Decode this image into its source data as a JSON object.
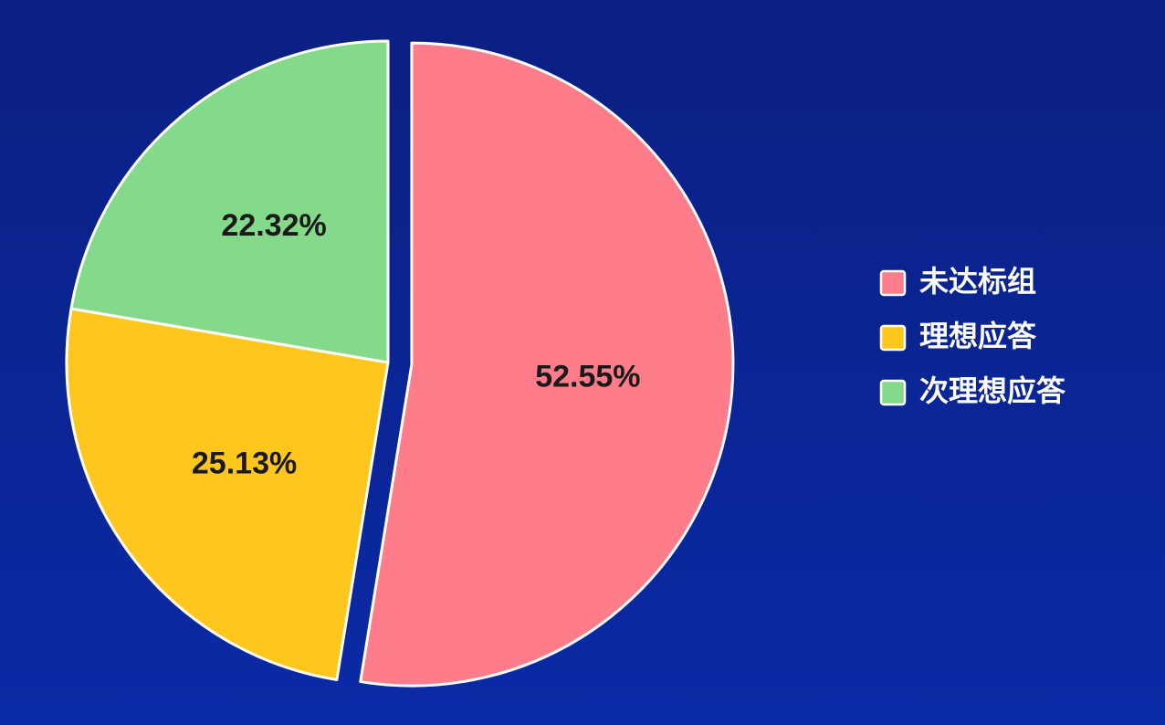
{
  "chart_data": {
    "type": "pie",
    "title": "",
    "exploded_slice": "未达标组",
    "slices": [
      {
        "label": "未达标组",
        "value": 52.55,
        "value_text": "52.55%",
        "color": "#ff7d8a"
      },
      {
        "label": "理想应答",
        "value": 25.13,
        "value_text": "25.13%",
        "color": "#ffc61e"
      },
      {
        "label": "次理想应答",
        "value": 22.32,
        "value_text": "22.32%",
        "color": "#84d98a"
      }
    ],
    "legend": {
      "placement": "right",
      "items": [
        {
          "label": "未达标组",
          "color": "#ff7d8a"
        },
        {
          "label": "理想应答",
          "color": "#ffc61e"
        },
        {
          "label": "次理想应答",
          "color": "#84d98a"
        }
      ]
    }
  },
  "colors": {
    "background": "#0a2491",
    "slice_border": "#ffffff"
  }
}
